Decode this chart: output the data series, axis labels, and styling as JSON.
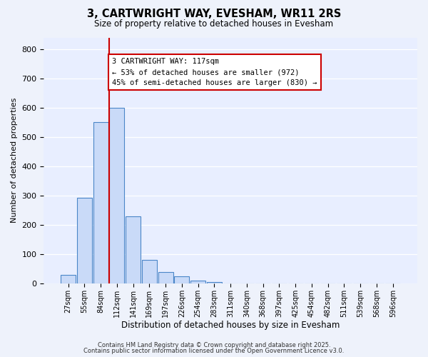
{
  "title": "3, CARTWRIGHT WAY, EVESHAM, WR11 2RS",
  "subtitle": "Size of property relative to detached houses in Evesham",
  "xlabel": "Distribution of detached houses by size in Evesham",
  "ylabel": "Number of detached properties",
  "bar_values": [
    28,
    293,
    550,
    600,
    228,
    80,
    38,
    25,
    10,
    5,
    0,
    0,
    0,
    0,
    0,
    0,
    0,
    0,
    0,
    0,
    0
  ],
  "bar_labels": [
    "27sqm",
    "55sqm",
    "84sqm",
    "112sqm",
    "141sqm",
    "169sqm",
    "197sqm",
    "226sqm",
    "254sqm",
    "283sqm",
    "311sqm",
    "340sqm",
    "368sqm",
    "397sqm",
    "425sqm",
    "454sqm",
    "482sqm",
    "511sqm",
    "539sqm",
    "568sqm",
    "596sqm"
  ],
  "bar_color": "#c9daf8",
  "bar_edge_color": "#4a86c8",
  "vline_bar_index": 3,
  "vline_color": "#cc0000",
  "annotation_title": "3 CARTWRIGHT WAY: 117sqm",
  "annotation_line1": "← 53% of detached houses are smaller (972)",
  "annotation_line2": "45% of semi-detached houses are larger (830) →",
  "annotation_box_color": "#ffffff",
  "annotation_box_edge": "#cc0000",
  "ylim": [
    0,
    840
  ],
  "yticks": [
    0,
    100,
    200,
    300,
    400,
    500,
    600,
    700,
    800
  ],
  "footer1": "Contains HM Land Registry data © Crown copyright and database right 2025.",
  "footer2": "Contains public sector information licensed under the Open Government Licence v3.0.",
  "bg_color": "#eef2fb",
  "plot_bg_color": "#e8eeff"
}
